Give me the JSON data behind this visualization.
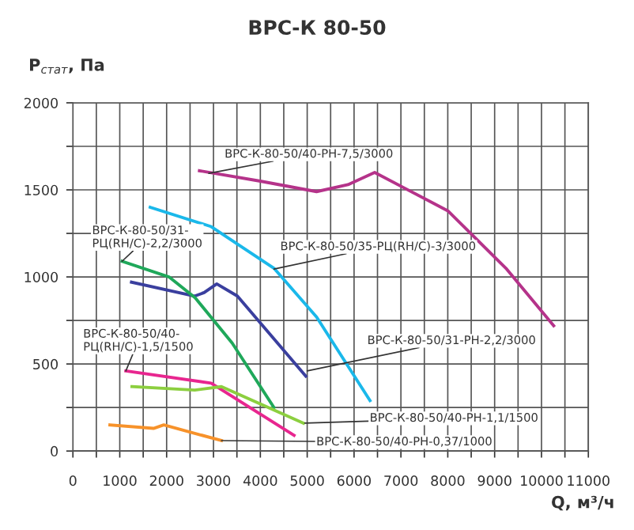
{
  "chart_data": {
    "type": "line",
    "title": "ВРС-К 80-50",
    "xlabel": "Q, м³/ч",
    "ylabel": "P$_{стат}$, Па",
    "xlim": [
      0,
      11000
    ],
    "ylim": [
      0,
      2000
    ],
    "xticks": [
      0,
      {
        "value": 500,
        "label": null
      },
      1000,
      {
        "value": 1500,
        "label": null
      },
      2000,
      {
        "value": 2500,
        "label": null
      },
      3000,
      {
        "value": 3500,
        "label": null
      },
      4000,
      {
        "value": 4500,
        "label": null
      },
      5000,
      {
        "value": 5500,
        "label": null
      },
      6000,
      {
        "value": 6500,
        "label": null
      },
      7000,
      {
        "value": 7500,
        "label": null
      },
      8000,
      {
        "value": 8500,
        "label": null
      },
      9000,
      {
        "value": 9500,
        "label": null
      },
      10000,
      {
        "value": 10500,
        "label": null
      },
      11000
    ],
    "yticks": [
      0,
      {
        "value": 250,
        "label": null
      },
      500,
      {
        "value": 750,
        "label": null
      },
      1000,
      {
        "value": 1250,
        "label": null
      },
      1500,
      {
        "value": 1750,
        "label": null
      },
      2000
    ],
    "grid": true,
    "legend": false,
    "marker": "none",
    "line_style": "solid",
    "series": [
      {
        "color": "#b5338a",
        "x": [
          2700,
          4000,
          5200,
          5870,
          6440,
          8000,
          9240,
          10260
        ],
        "values": [
          1610,
          1550,
          1490,
          1530,
          1600,
          1380,
          1050,
          720
        ]
      },
      {
        "color": "#1ab8ea",
        "x": [
          1650,
          2940,
          4290,
          5200,
          6340
        ],
        "values": [
          1400,
          1290,
          1050,
          770,
          290
        ]
      },
      {
        "color": "#3a3f9e",
        "x": [
          1250,
          2600,
          2800,
          3070,
          3510,
          4970
        ],
        "values": [
          970,
          890,
          910,
          960,
          890,
          430
        ]
      },
      {
        "color": "#1fa85a",
        "x": [
          1050,
          2050,
          2610,
          3400,
          4290
        ],
        "values": [
          1090,
          1000,
          880,
          620,
          250
        ]
      },
      {
        "color": "#e8268f",
        "x": [
          1130,
          2950,
          4720
        ],
        "values": [
          460,
          390,
          90
        ]
      },
      {
        "color": "#8ccf3f",
        "x": [
          1260,
          2600,
          3170,
          4920
        ],
        "values": [
          370,
          350,
          370,
          160
        ]
      },
      {
        "color": "#f7922a",
        "x": [
          790,
          1720,
          1940,
          3170
        ],
        "values": [
          150,
          130,
          150,
          60
        ]
      }
    ],
    "annotations": [
      {
        "text": "ВРС-К-80-50/40-РН-7,5/3000",
        "x": 2900,
        "y": 1595
      },
      {
        "text": "ВРС-К-80-50/35-РЦ(RH/C)-3/3000",
        "x": 4290,
        "y": 1045
      },
      {
        "text": "ВРС-К-80-50/31-\nРЦ(RH/C)-2,2/3000",
        "x": 1050,
        "y": 1090
      },
      {
        "text": "ВРС-К-80-50/40-\nРЦ(RH/C)-1,5/1500",
        "x": 1130,
        "y": 460
      },
      {
        "text": "ВРС-К-80-50/31-РН-2,2/3000",
        "x": 5000,
        "y": 460
      },
      {
        "text": "ВРС-К-80-50/40-РН-1,1/1500",
        "x": 4950,
        "y": 160
      },
      {
        "text": "ВРС-К-80-50/40-РН-0,37/1000",
        "x": 3170,
        "y": 60
      }
    ]
  }
}
